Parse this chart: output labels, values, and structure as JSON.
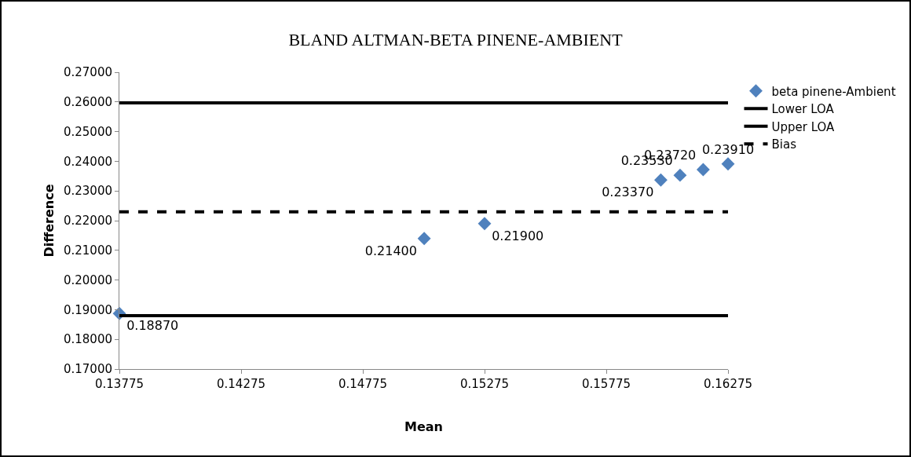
{
  "chart_data": {
    "type": "scatter",
    "title": "BLAND ALTMAN-BETA PINENE-AMBIENT",
    "xlabel": "Mean",
    "ylabel": "Difference",
    "series": [
      {
        "name": "beta pinene-Ambient",
        "color": "#4f81bd",
        "marker": "diamond",
        "x": [
          0.13775,
          0.15027,
          0.15275,
          0.15999,
          0.16078,
          0.16173,
          0.16275
        ],
        "values": [
          0.1887,
          0.214,
          0.219,
          0.2337,
          0.2353,
          0.2372,
          0.2391
        ],
        "value_labels": [
          "0.18870",
          "0.21400",
          "0.21900",
          "0.23370",
          "0.23530",
          "0.23720",
          "0.23910"
        ]
      },
      {
        "name": "Lower LOA",
        "type": "line",
        "color": "#000000",
        "marker": "none",
        "line_style": "solid",
        "x": [
          0.13775,
          0.16275
        ],
        "values": [
          0.2597,
          0.2597
        ]
      },
      {
        "name": "Upper LOA",
        "type": "line",
        "color": "#000000",
        "marker": "none",
        "line_style": "solid",
        "x": [
          0.13775,
          0.16275
        ],
        "values": [
          0.188,
          0.188
        ]
      },
      {
        "name": "Bias",
        "type": "line",
        "color": "#000000",
        "marker": "none",
        "line_style": "dashed",
        "x": [
          0.13775,
          0.16275
        ],
        "values": [
          0.223,
          0.223
        ]
      }
    ],
    "xlim": [
      0.13775,
      0.16275
    ],
    "xticks": [
      0.13775,
      0.14275,
      0.14775,
      0.15275,
      0.15775,
      0.16275
    ],
    "ylim": [
      0.17,
      0.27
    ],
    "yticks": [
      {
        "value": 0.17,
        "label": "0.17000"
      },
      {
        "value": 0.18,
        "label": "0.18000"
      },
      {
        "value": 0.19,
        "label": "0.19000"
      },
      {
        "value": 0.2,
        "label": "0.20000"
      },
      {
        "value": 0.21,
        "label": "0.21000"
      },
      {
        "value": 0.22,
        "label": "0.22000"
      },
      {
        "value": 0.23,
        "label": "0.23000"
      },
      {
        "value": 0.24,
        "label": "0.24000"
      },
      {
        "value": 0.25,
        "label": "0.25000"
      },
      {
        "value": 0.26,
        "label": "0.26000"
      },
      {
        "value": 0.27,
        "label": "0.27000"
      }
    ],
    "grid": false,
    "legend": "right"
  }
}
